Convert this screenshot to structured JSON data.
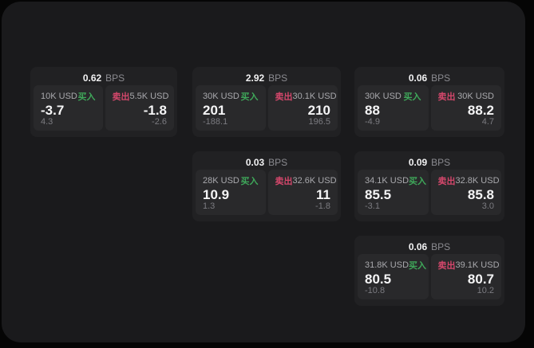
{
  "labels": {
    "buy": "买入",
    "sell": "卖出",
    "bps_unit": "BPS"
  },
  "colors": {
    "page_background": "#050505",
    "panel_background": "#1a1a1c",
    "card_background": "#212123",
    "tile_background": "#29292b",
    "buy_accent": "#3fa85a",
    "sell_accent": "#d4476b"
  },
  "cards": [
    {
      "bps": "0.62",
      "buy": {
        "size": "10K USD",
        "value": "-3.7",
        "delta": "4.3"
      },
      "sell": {
        "size": "5.5K USD",
        "value": "-1.8",
        "delta": "-2.6"
      }
    },
    {
      "bps": "2.92",
      "buy": {
        "size": "30K USD",
        "value": "201",
        "delta": "-188.1"
      },
      "sell": {
        "size": "30.1K USD",
        "value": "210",
        "delta": "196.5"
      }
    },
    {
      "bps": "0.06",
      "buy": {
        "size": "30K USD",
        "value": "88",
        "delta": "-4.9"
      },
      "sell": {
        "size": "30K USD",
        "value": "88.2",
        "delta": "4.7"
      }
    },
    {
      "bps": "0.03",
      "buy": {
        "size": "28K USD",
        "value": "10.9",
        "delta": "1.3"
      },
      "sell": {
        "size": "32.6K USD",
        "value": "11",
        "delta": "-1.8"
      }
    },
    {
      "bps": "0.09",
      "buy": {
        "size": "34.1K USD",
        "value": "85.5",
        "delta": "-3.1"
      },
      "sell": {
        "size": "32.8K USD",
        "value": "85.8",
        "delta": "3.0"
      }
    },
    {
      "bps": "0.06",
      "buy": {
        "size": "31.8K USD",
        "value": "80.5",
        "delta": "-10.8"
      },
      "sell": {
        "size": "39.1K USD",
        "value": "80.7",
        "delta": "10.2"
      }
    }
  ]
}
